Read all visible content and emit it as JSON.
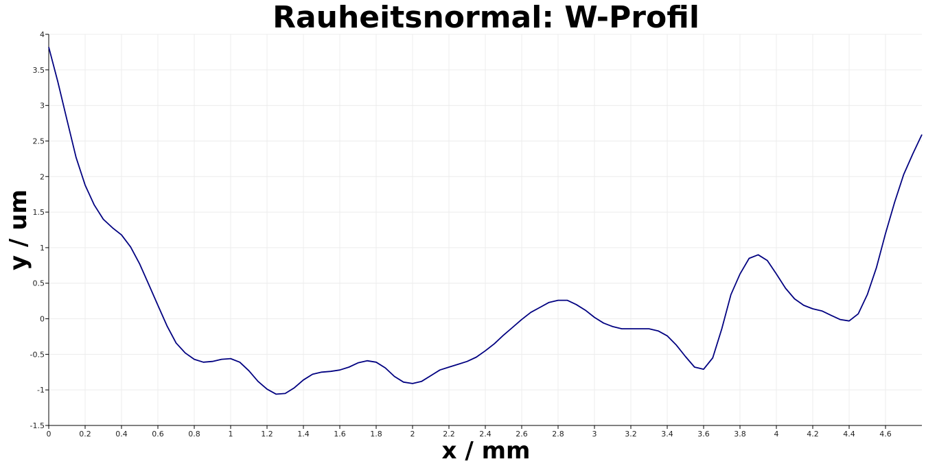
{
  "chart_data": {
    "type": "line",
    "title": "Rauheitsnormal: W-Profil",
    "xlabel": "x / mm",
    "ylabel": "y / um",
    "x": [
      0,
      0.05,
      0.1,
      0.15,
      0.2,
      0.25,
      0.3,
      0.35,
      0.4,
      0.45,
      0.5,
      0.55,
      0.6,
      0.65,
      0.7,
      0.75,
      0.8,
      0.85,
      0.9,
      0.95,
      1,
      1.05,
      1.1,
      1.15,
      1.2,
      1.25,
      1.3,
      1.35,
      1.4,
      1.45,
      1.5,
      1.55,
      1.6,
      1.65,
      1.7,
      1.75,
      1.8,
      1.85,
      1.9,
      1.95,
      2,
      2.05,
      2.1,
      2.15,
      2.2,
      2.25,
      2.3,
      2.35,
      2.4,
      2.45,
      2.5,
      2.55,
      2.6,
      2.65,
      2.7,
      2.75,
      2.8,
      2.85,
      2.9,
      2.95,
      3,
      3.05,
      3.1,
      3.15,
      3.2,
      3.25,
      3.3,
      3.35,
      3.4,
      3.45,
      3.5,
      3.55,
      3.6,
      3.65,
      3.7,
      3.75,
      3.8,
      3.85,
      3.9,
      3.95,
      4,
      4.05,
      4.1,
      4.15,
      4.2,
      4.25,
      4.3,
      4.35,
      4.4,
      4.45,
      4.5,
      4.55,
      4.6,
      4.65,
      4.7,
      4.75,
      4.8
    ],
    "values": [
      3.82,
      3.33,
      2.8,
      2.27,
      1.88,
      1.6,
      1.4,
      1.28,
      1.18,
      1.01,
      0.77,
      0.48,
      0.19,
      -0.1,
      -0.34,
      -0.48,
      -0.57,
      -0.61,
      -0.6,
      -0.57,
      -0.56,
      -0.61,
      -0.73,
      -0.88,
      -0.99,
      -1.06,
      -1.05,
      -0.97,
      -0.86,
      -0.78,
      -0.75,
      -0.74,
      -0.72,
      -0.68,
      -0.62,
      -0.59,
      -0.61,
      -0.69,
      -0.81,
      -0.89,
      -0.91,
      -0.88,
      -0.8,
      -0.72,
      -0.68,
      -0.64,
      -0.6,
      -0.54,
      -0.45,
      -0.35,
      -0.23,
      -0.12,
      -0.01,
      0.09,
      0.16,
      0.23,
      0.26,
      0.26,
      0.2,
      0.12,
      0.02,
      -0.06,
      -0.11,
      -0.14,
      -0.14,
      -0.14,
      -0.14,
      -0.17,
      -0.24,
      -0.37,
      -0.53,
      -0.68,
      -0.71,
      -0.55,
      -0.14,
      0.34,
      0.63,
      0.85,
      0.9,
      0.82,
      0.63,
      0.43,
      0.28,
      0.19,
      0.14,
      0.11,
      0.05,
      -0.01,
      -0.03,
      0.07,
      0.34,
      0.72,
      1.2,
      1.64,
      2.03,
      2.32,
      2.59
    ],
    "color": "#000080",
    "xlim": [
      0,
      4.8
    ],
    "ylim": [
      -1.5,
      4
    ],
    "xticks": [
      0,
      0.2,
      0.4,
      0.6,
      0.8,
      1,
      1.2,
      1.4,
      1.6,
      1.8,
      2,
      2.2,
      2.4,
      2.6,
      2.8,
      3,
      3.2,
      3.4,
      3.6,
      3.8,
      4,
      4.2,
      4.4,
      4.6
    ],
    "yticks": [
      -1.5,
      -1,
      -0.5,
      0,
      0.5,
      1,
      1.5,
      2,
      2.5,
      3,
      3.5,
      4
    ],
    "grid": true
  }
}
